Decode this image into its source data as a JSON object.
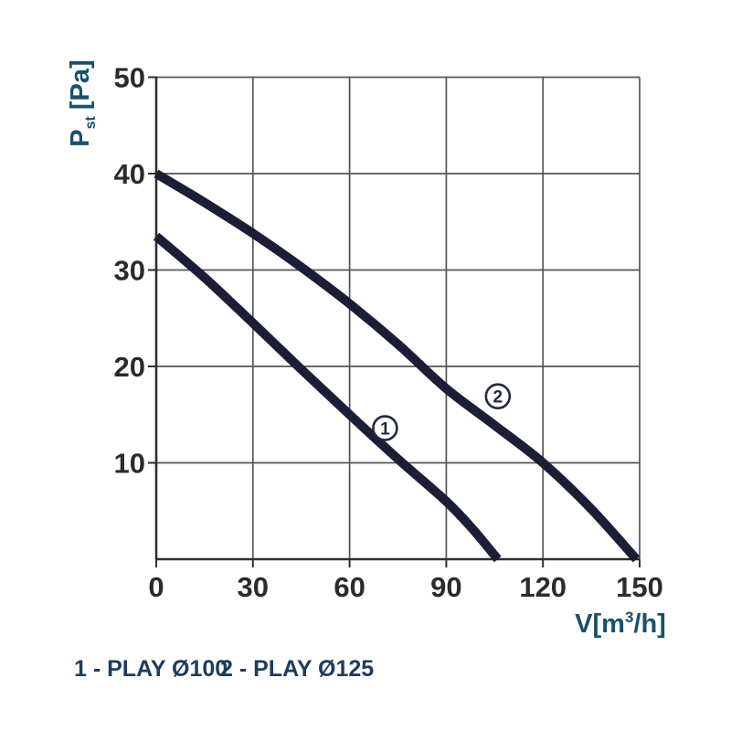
{
  "chart_data": {
    "type": "line",
    "title": "",
    "xlabel": "V[m³/h]",
    "ylabel": "Pst [Pa]",
    "xlabel_parts": {
      "pre": "V[m",
      "sup": "3",
      "post": "/h]"
    },
    "ylabel_parts": {
      "main": "P",
      "sub": "st",
      "unit": "[Pa]"
    },
    "xlim": [
      0,
      150
    ],
    "ylim": [
      0,
      50
    ],
    "x_ticks": [
      "0",
      "30",
      "60",
      "90",
      "120",
      "150"
    ],
    "y_ticks": [
      "10",
      "20",
      "30",
      "40",
      "50"
    ],
    "grid": true,
    "legend_position": "bottom-left",
    "series": [
      {
        "name": "PLAY Ø100",
        "index": "1",
        "marker": {
          "x": 71,
          "y": 13.6
        },
        "points": [
          [
            0,
            33.5
          ],
          [
            15,
            29.2
          ],
          [
            30,
            24.5
          ],
          [
            45,
            19.7
          ],
          [
            60,
            15
          ],
          [
            75,
            10.4
          ],
          [
            90,
            6
          ],
          [
            98,
            3.2
          ],
          [
            106,
            0
          ]
        ]
      },
      {
        "name": "PLAY Ø125",
        "index": "2",
        "marker": {
          "x": 106,
          "y": 16.9
        },
        "points": [
          [
            0,
            40
          ],
          [
            15,
            37
          ],
          [
            30,
            33.8
          ],
          [
            45,
            30.3
          ],
          [
            60,
            26.5
          ],
          [
            75,
            22.3
          ],
          [
            90,
            17.7
          ],
          [
            105,
            13.9
          ],
          [
            120,
            10
          ],
          [
            135,
            5.2
          ],
          [
            149,
            0
          ]
        ]
      }
    ],
    "colors": {
      "curve": "#1a1e36",
      "grid": "#555555",
      "axis": "#2f2f2f",
      "tick_text": "#2b2b2b",
      "axis_label_text": "#17506b",
      "legend_text": "#1d3c5e",
      "marker_stroke": "#23273f",
      "background": "#ffffff"
    }
  },
  "legend": {
    "items": [
      {
        "label": "1 - PLAY Ø100"
      },
      {
        "label": "2 - PLAY Ø125"
      }
    ]
  }
}
